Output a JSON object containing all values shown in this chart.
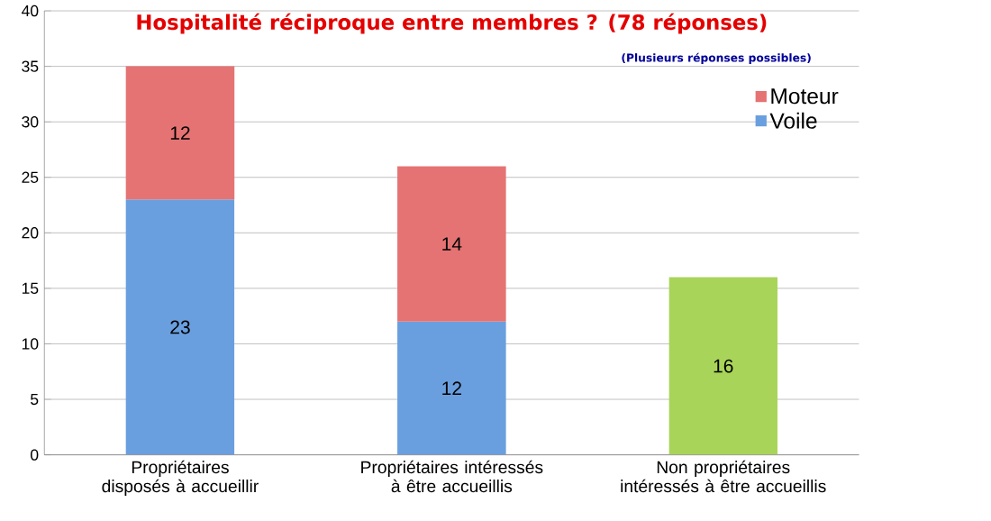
{
  "chart_data": {
    "type": "bar",
    "title": "Hospitalité réciproque entre membres ? (78 réponses)",
    "subtitle": "(Plusieurs réponses possibles)",
    "categories": [
      "Propriétaires disposés à accueillir",
      "Propriétaires intéressés à être accueillis",
      "Non propriétaires intéressés à être accueillis"
    ],
    "series": [
      {
        "name": "Voile",
        "color": "#6a9fdf",
        "values": [
          23,
          12,
          null
        ]
      },
      {
        "name": "Moteur",
        "color": "#e57373",
        "values": [
          12,
          14,
          null
        ]
      },
      {
        "color": "#a9d45a",
        "values": [
          null,
          null,
          16
        ]
      }
    ],
    "stacked": true,
    "data_labels": true,
    "grid": "y",
    "legend": "top right",
    "ylim": [
      0,
      40
    ],
    "yticks": [
      0,
      5,
      10,
      15,
      20,
      25,
      30,
      35,
      40
    ]
  }
}
